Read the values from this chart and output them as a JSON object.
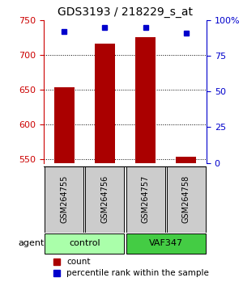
{
  "title": "GDS3193 / 218229_s_at",
  "samples": [
    "GSM264755",
    "GSM264756",
    "GSM264757",
    "GSM264758"
  ],
  "count_values": [
    653,
    716,
    725,
    554
  ],
  "percentile_values": [
    92,
    95,
    95,
    91
  ],
  "ylim_left": [
    545,
    750
  ],
  "ylim_right": [
    0,
    100
  ],
  "yticks_left": [
    550,
    600,
    650,
    700,
    750
  ],
  "yticks_right": [
    0,
    25,
    50,
    75,
    100
  ],
  "bar_color": "#aa0000",
  "dot_color": "#0000cc",
  "groups": [
    {
      "label": "control",
      "samples": [
        0,
        1
      ],
      "color": "#aaffaa"
    },
    {
      "label": "VAF347",
      "samples": [
        2,
        3
      ],
      "color": "#44cc44"
    }
  ],
  "agent_label": "agent",
  "legend_count_label": "count",
  "legend_pct_label": "percentile rank within the sample",
  "bar_width": 0.5,
  "sample_box_color": "#cccccc",
  "left_tick_color": "#cc0000",
  "right_tick_color": "#0000cc"
}
